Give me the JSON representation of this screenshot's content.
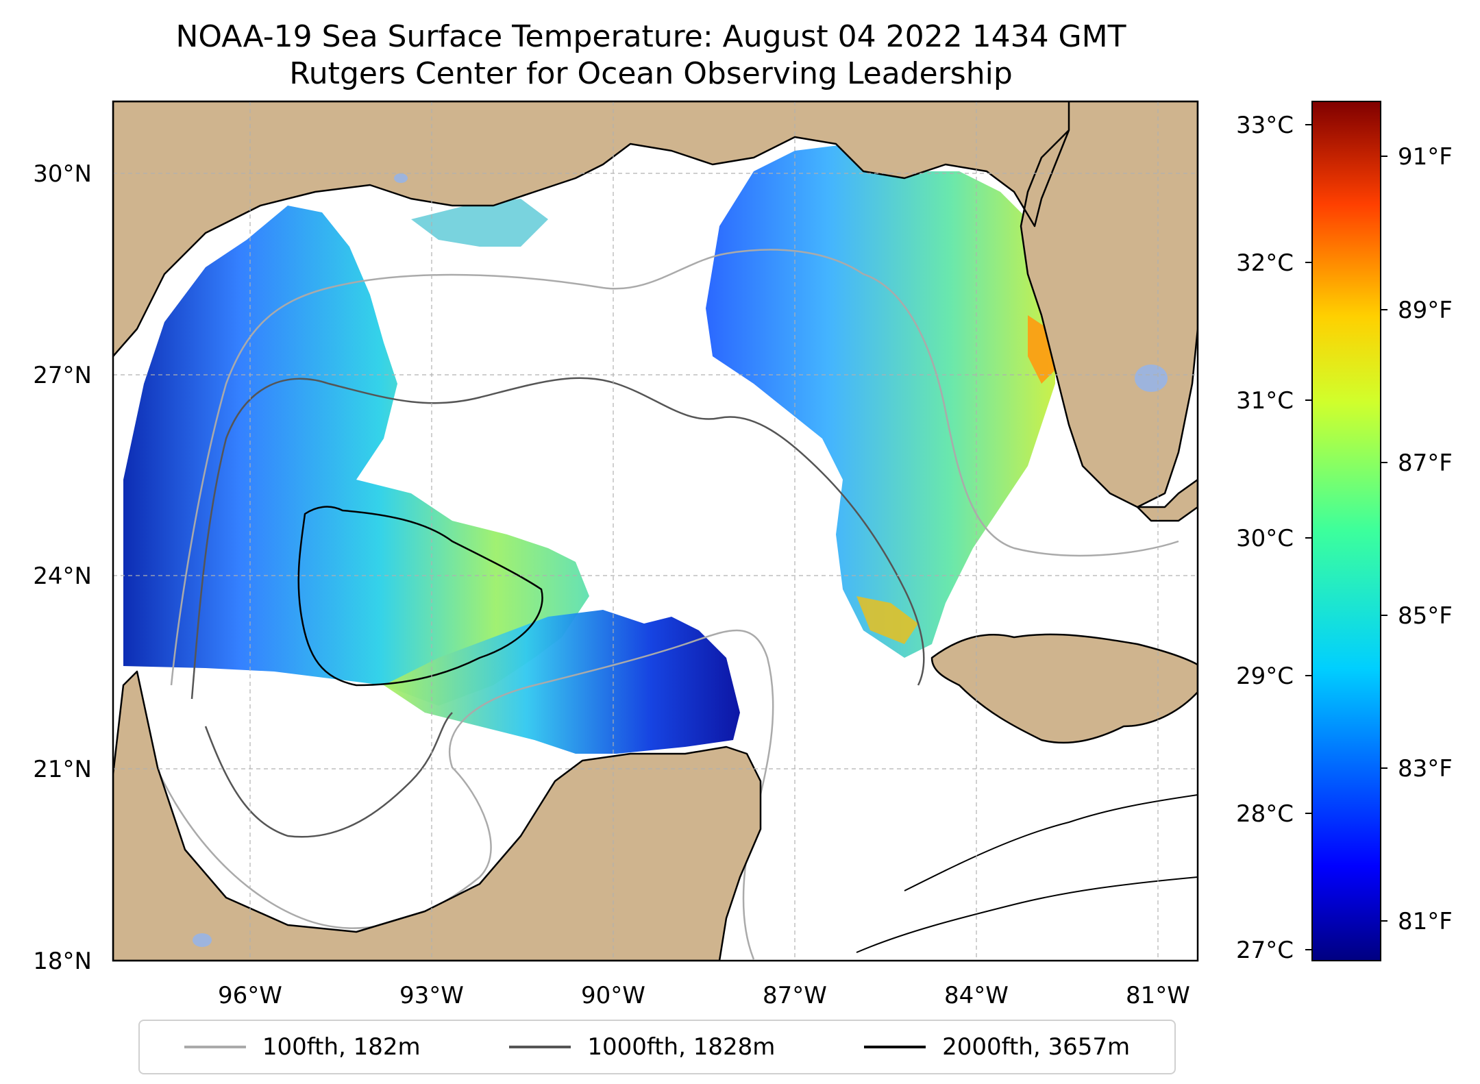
{
  "title": "NOAA-19 Sea Surface Temperature: August 04 2022 1434 GMT",
  "subtitle": "Rutgers Center for Ocean Observing Leadership",
  "map": {
    "lat_ticks": [
      "30°N",
      "27°N",
      "24°N",
      "21°N",
      "18°N"
    ],
    "lon_ticks": [
      "96°W",
      "93°W",
      "90°W",
      "87°W",
      "84°W",
      "81°W"
    ],
    "colors": {
      "land": "#cfb48e",
      "water_no_data": "#ffffff",
      "inland_water": "#9db4dd"
    }
  },
  "colorbar": {
    "celsius_labels": [
      "33°C",
      "32°C",
      "31°C",
      "30°C",
      "29°C",
      "28°C",
      "27°C"
    ],
    "fahrenheit_labels": [
      "91°F",
      "89°F",
      "87°F",
      "85°F",
      "83°F",
      "81°F"
    ],
    "colormap": "jet"
  },
  "legend": {
    "items": [
      {
        "label": "100fth, 182m",
        "color": "#aaaaaa"
      },
      {
        "label": "1000fth, 1828m",
        "color": "#555555"
      },
      {
        "label": "2000fth, 3657m",
        "color": "#000000"
      }
    ]
  }
}
